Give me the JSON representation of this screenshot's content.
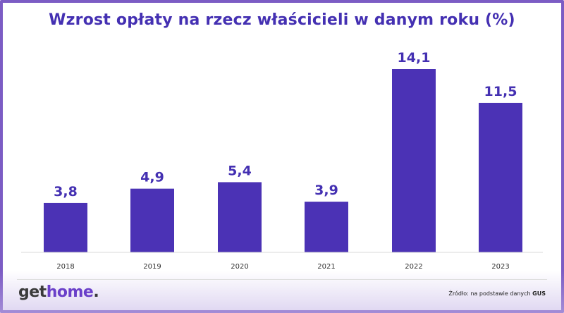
{
  "logo": {
    "get": "get",
    "home": "home",
    "dot": "."
  },
  "source": {
    "prefix": "Źródło: na podstawie danych",
    "name": "GUS"
  },
  "colors": {
    "bar": "#4b32b5",
    "title": "#4430b2",
    "frame": "#7c5cc4",
    "logo_accent": "#6a3fc9"
  },
  "chart_data": {
    "type": "bar",
    "title": "Wzrost opłaty na rzecz właścicieli w danym roku (%)",
    "xlabel": "",
    "ylabel": "",
    "categories": [
      "2018",
      "2019",
      "2020",
      "2021",
      "2022",
      "2023"
    ],
    "values": [
      3.8,
      4.9,
      5.4,
      3.9,
      14.1,
      11.5
    ],
    "value_labels": [
      "3,8",
      "4,9",
      "5,4",
      "3,9",
      "14,1",
      "11,5"
    ],
    "ylim": [
      0,
      14.1
    ],
    "grid": false,
    "legend": "none"
  }
}
